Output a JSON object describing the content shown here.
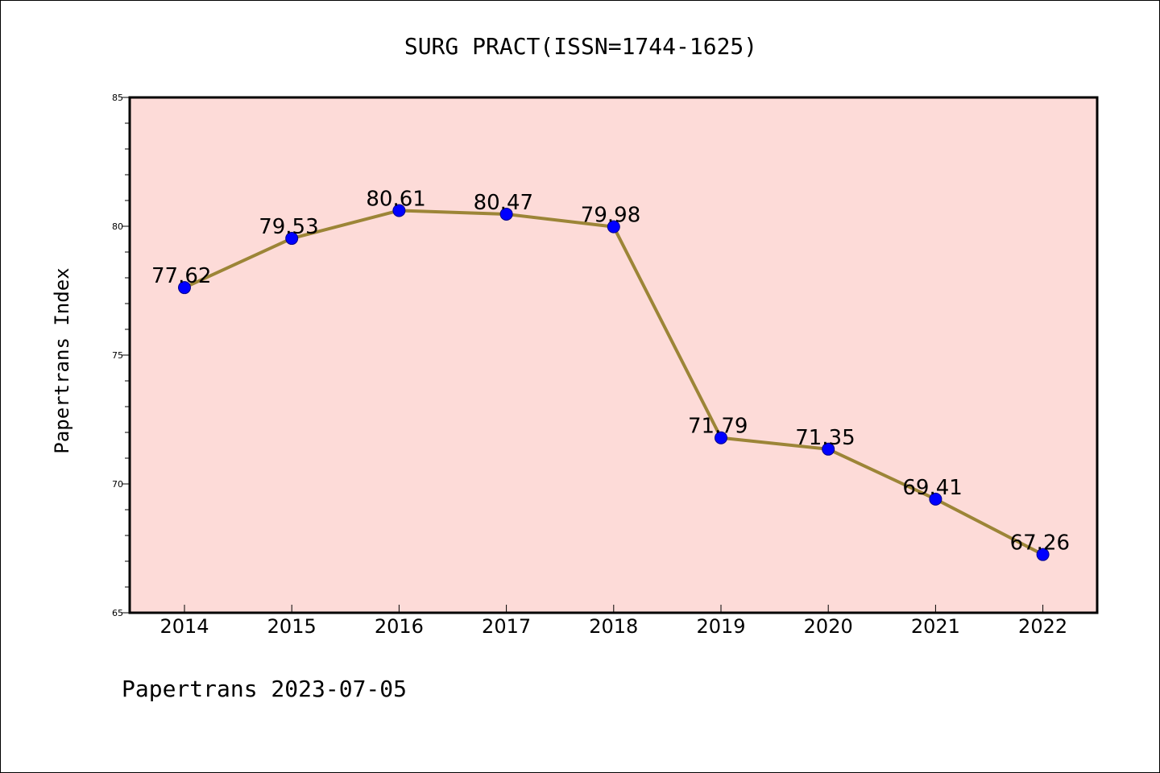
{
  "chart_data": {
    "type": "line",
    "title": "SURG PRACT(ISSN=1744-1625)",
    "xlabel": "",
    "ylabel": "Papertrans Index",
    "categories": [
      "2014",
      "2015",
      "2016",
      "2017",
      "2018",
      "2019",
      "2020",
      "2021",
      "2022"
    ],
    "series": [
      {
        "values": [
          77.62,
          79.53,
          80.61,
          80.47,
          79.98,
          71.79,
          71.35,
          69.41,
          67.26
        ],
        "data_labels": [
          "77.62",
          "79.53",
          "80.61",
          "80.47",
          "79.98",
          "71.79",
          "71.35",
          "69.41",
          "67.26"
        ]
      }
    ],
    "ylim": [
      65,
      85
    ],
    "yticks": [
      65,
      70,
      75,
      80,
      85
    ],
    "ytick_labels": [
      "65",
      "70",
      "75",
      "80",
      "85"
    ],
    "grid": false,
    "legend": "none",
    "colors": {
      "plot_background": "#fddbd8",
      "line": "#9c8537",
      "marker": "#0000ff"
    }
  },
  "footer": {
    "text": "Papertrans 2023-07-05"
  }
}
